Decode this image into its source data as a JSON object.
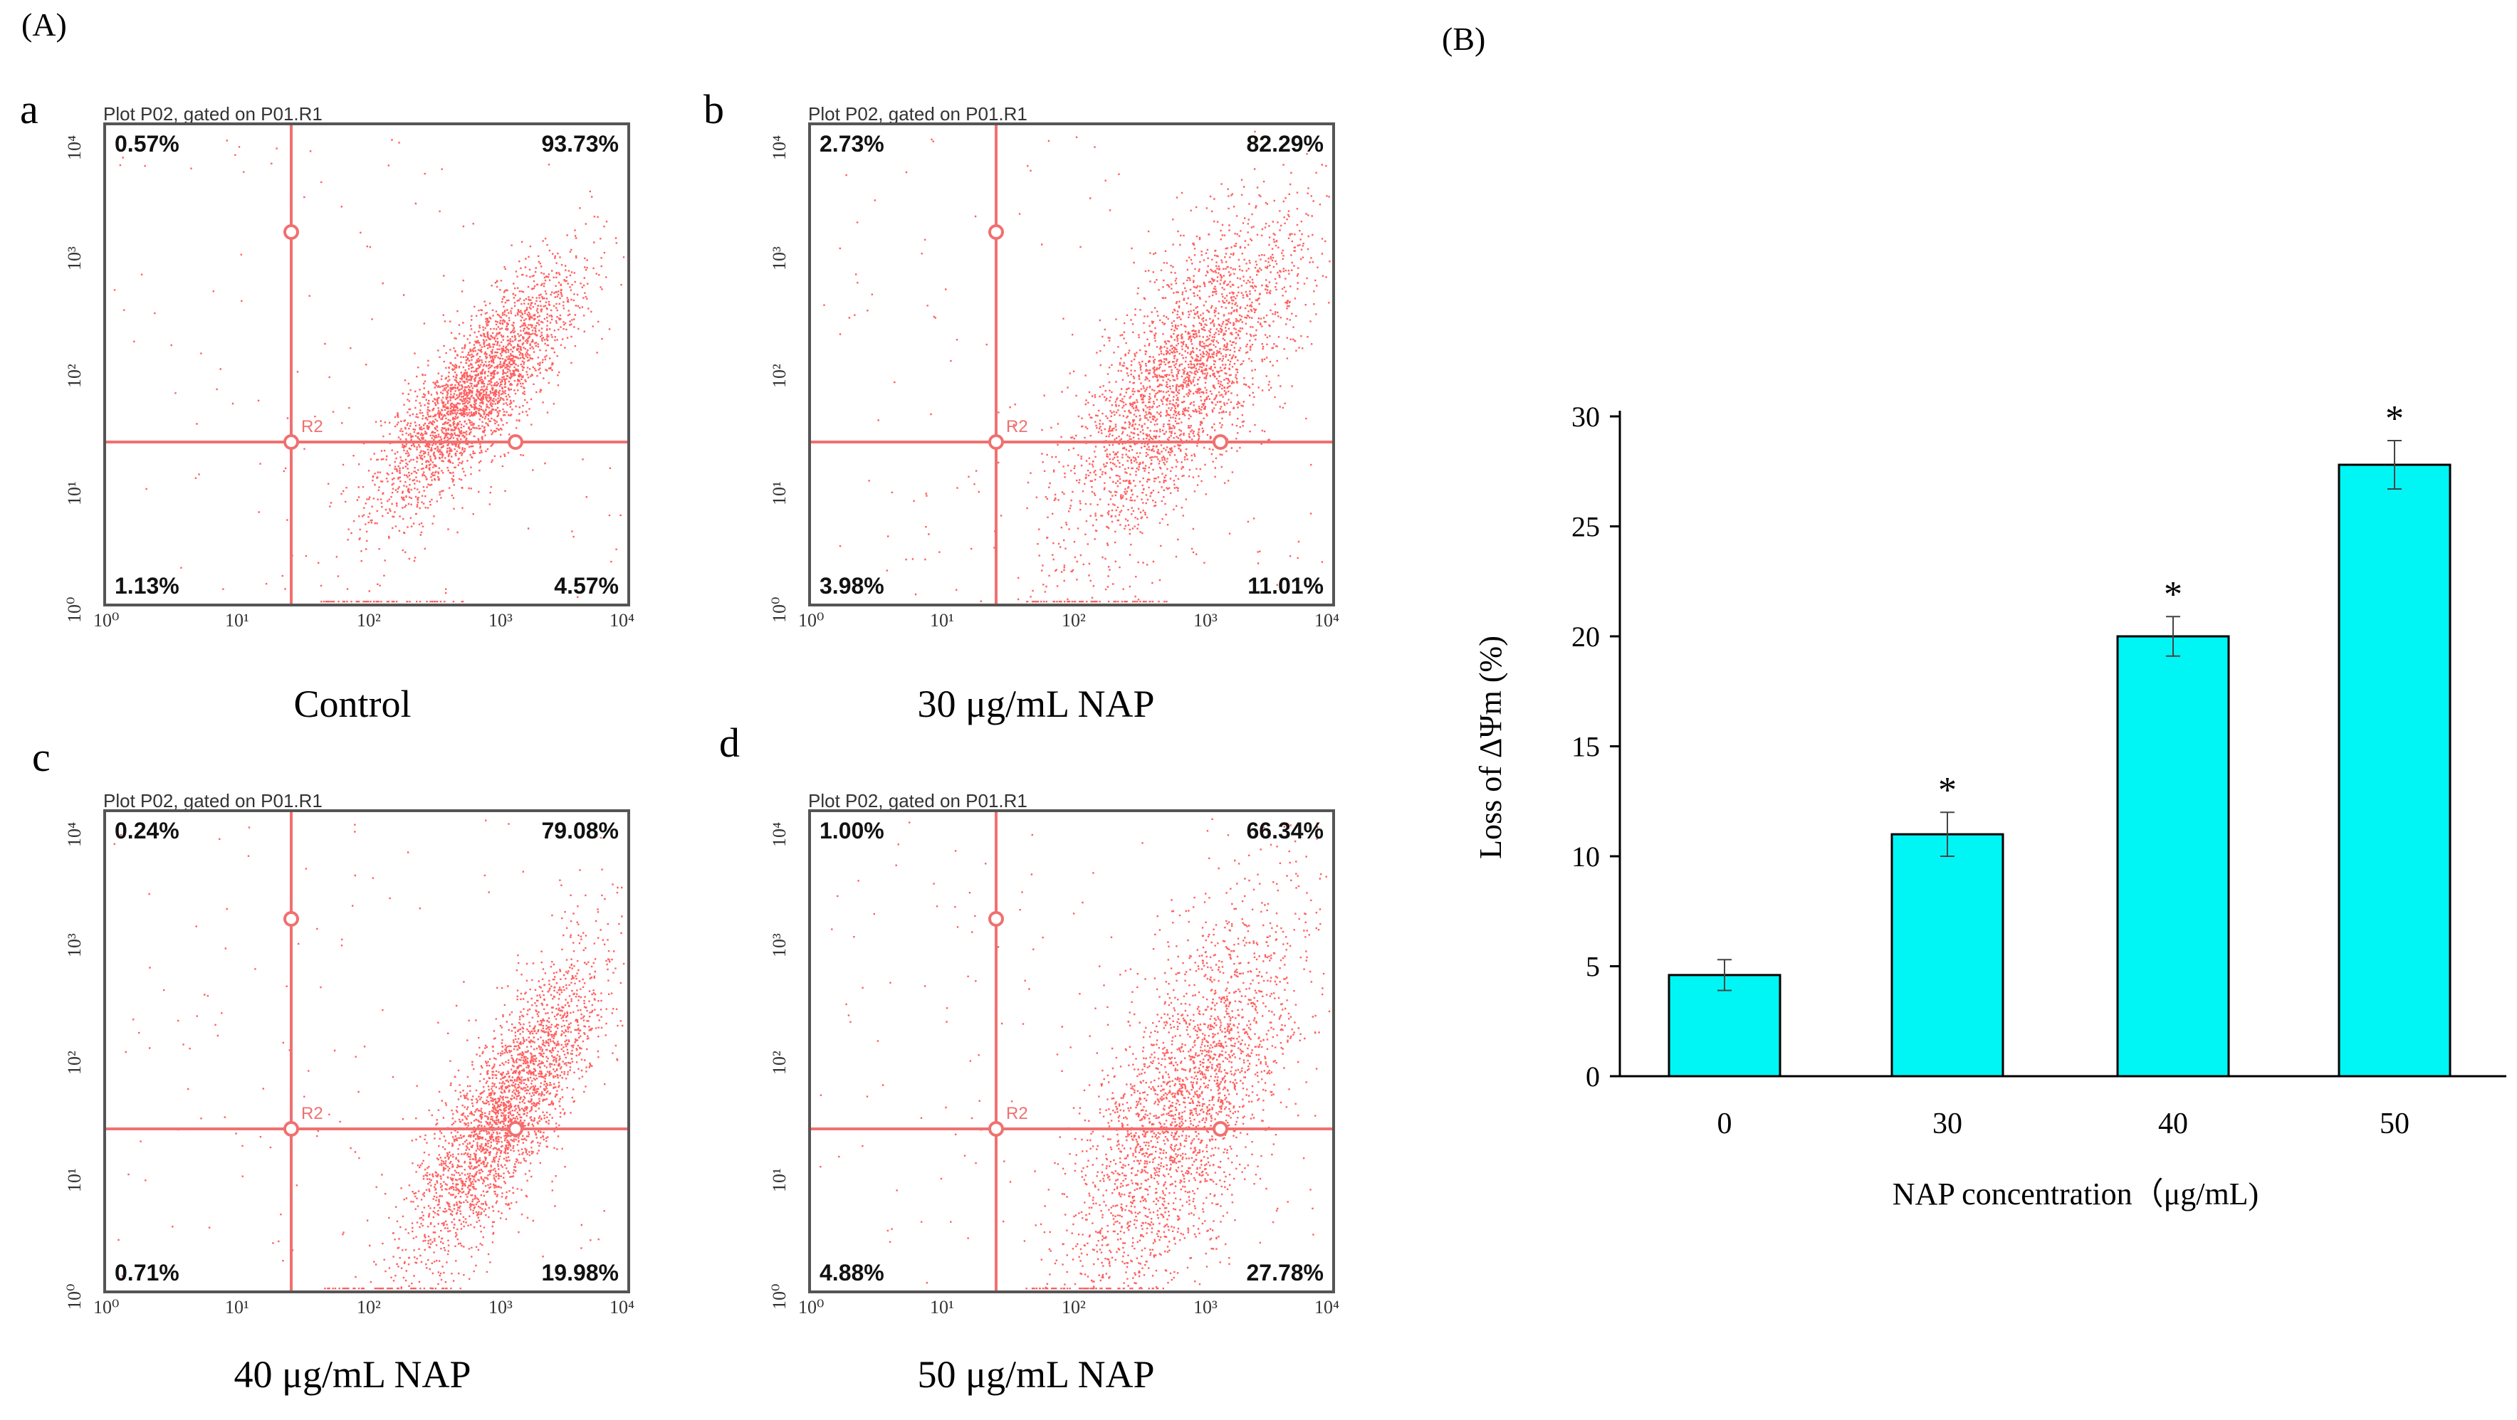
{
  "figure": {
    "panel_a_label": "(A)",
    "panel_b_label": "(B)"
  },
  "flow_plots": [
    {
      "letter": "a",
      "header": "Plot P02, gated on P01.R1",
      "ul": "0.57%",
      "ur": "93.73%",
      "ll": "1.13%",
      "lr": "4.57%",
      "gate": "R2",
      "caption": "Control",
      "x_ticks": [
        "10⁰",
        "10¹",
        "10²",
        "10³",
        "10⁴"
      ],
      "y_ticks": [
        "10⁰",
        "10¹",
        "10²",
        "10³",
        "10⁴"
      ]
    },
    {
      "letter": "b",
      "header": "Plot P02, gated on P01.R1",
      "ul": "2.73%",
      "ur": "82.29%",
      "ll": "3.98%",
      "lr": "11.01%",
      "gate": "R2",
      "caption": "30 μg/mL NAP",
      "x_ticks": [
        "10⁰",
        "10¹",
        "10²",
        "10³",
        "10⁴"
      ],
      "y_ticks": [
        "10⁰",
        "10¹",
        "10²",
        "10³",
        "10⁴"
      ]
    },
    {
      "letter": "c",
      "header": "Plot P02, gated on P01.R1",
      "ul": "0.24%",
      "ur": "79.08%",
      "ll": "0.71%",
      "lr": "19.98%",
      "gate": "R2",
      "caption": "40 μg/mL NAP",
      "x_ticks": [
        "10⁰",
        "10¹",
        "10²",
        "10³",
        "10⁴"
      ],
      "y_ticks": [
        "10⁰",
        "10¹",
        "10²",
        "10³",
        "10⁴"
      ]
    },
    {
      "letter": "d",
      "header": "Plot P02, gated on P01.R1",
      "ul": "1.00%",
      "ur": "66.34%",
      "ll": "4.88%",
      "lr": "27.78%",
      "gate": "R2",
      "caption": "50 μg/mL NAP",
      "x_ticks": [
        "10⁰",
        "10¹",
        "10²",
        "10³",
        "10⁴"
      ],
      "y_ticks": [
        "10⁰",
        "10¹",
        "10²",
        "10³",
        "10⁴"
      ]
    }
  ],
  "chart_data": {
    "type": "bar",
    "categories": [
      "0",
      "30",
      "40",
      "50"
    ],
    "values": [
      4.6,
      11.0,
      20.0,
      27.8
    ],
    "errors": [
      0.7,
      1.0,
      0.9,
      1.1
    ],
    "significance": [
      "",
      "*",
      "*",
      "*"
    ],
    "xlabel": "NAP concentration（μg/mL)",
    "ylabel": "Loss of ΔΨm (%)",
    "ylim": [
      0,
      30
    ],
    "yticks": [
      0,
      5,
      10,
      15,
      20,
      25,
      30
    ],
    "bar_color": "#00f5f5",
    "title": ""
  },
  "colors": {
    "dots": "#ff2a2a",
    "gate_lines": "#f07070",
    "bar_fill": "#00f5f5"
  }
}
